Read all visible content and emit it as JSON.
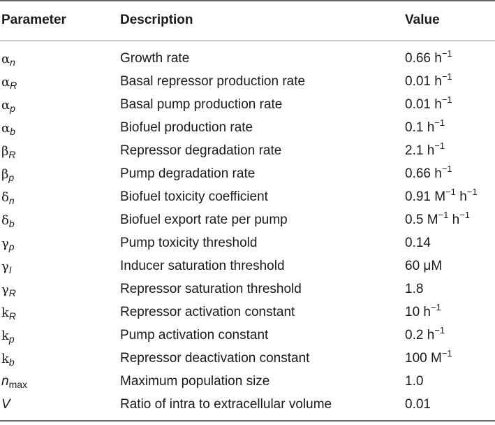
{
  "header": {
    "parameter": "Parameter",
    "description": "Description",
    "value": "Value"
  },
  "rows": [
    {
      "sym": "α",
      "sub": "n",
      "desc": "Growth rate",
      "val": "0.66 h",
      "sup": "−1",
      "val2": "",
      "sup2": ""
    },
    {
      "sym": "α",
      "sub": "R",
      "desc": "Basal repressor production rate",
      "val": "0.01 h",
      "sup": "−1",
      "val2": "",
      "sup2": ""
    },
    {
      "sym": "α",
      "sub": "p",
      "desc": "Basal pump production rate",
      "val": "0.01 h",
      "sup": "−1",
      "val2": "",
      "sup2": ""
    },
    {
      "sym": "α",
      "sub": "b",
      "desc": "Biofuel production rate",
      "val": "0.1 h",
      "sup": "−1",
      "val2": "",
      "sup2": ""
    },
    {
      "sym": "β",
      "sub": "R",
      "desc": "Repressor degradation rate",
      "val": "2.1 h",
      "sup": "−1",
      "val2": "",
      "sup2": ""
    },
    {
      "sym": "β",
      "sub": "p",
      "desc": "Pump degradation rate",
      "val": "0.66 h",
      "sup": "−1",
      "val2": "",
      "sup2": ""
    },
    {
      "sym": "δ",
      "sub": "n",
      "desc": "Biofuel toxicity coefficient",
      "val": "0.91 M",
      "sup": "−1",
      "val2": " h",
      "sup2": "−1"
    },
    {
      "sym": "δ",
      "sub": "b",
      "desc": "Biofuel export rate per pump",
      "val": "0.5 M",
      "sup": "−1",
      "val2": " h",
      "sup2": "−1"
    },
    {
      "sym": "γ",
      "sub": "p",
      "desc": "Pump toxicity threshold",
      "val": "0.14",
      "sup": "",
      "val2": "",
      "sup2": ""
    },
    {
      "sym": "γ",
      "sub": "I",
      "desc": "Inducer saturation threshold",
      "val": "60 μM",
      "sup": "",
      "val2": "",
      "sup2": ""
    },
    {
      "sym": "γ",
      "sub": "R",
      "desc": "Repressor saturation threshold",
      "val": "1.8",
      "sup": "",
      "val2": "",
      "sup2": ""
    },
    {
      "sym": "k",
      "sub": "R",
      "desc": "Repressor activation constant",
      "val": "10 h",
      "sup": "−1",
      "val2": "",
      "sup2": ""
    },
    {
      "sym": "k",
      "sub": "p",
      "desc": "Pump activation constant",
      "val": "0.2 h",
      "sup": "−1",
      "val2": "",
      "sup2": ""
    },
    {
      "sym": "k",
      "sub": "b",
      "desc": "Repressor deactivation constant",
      "val": "100 M",
      "sup": "−1",
      "val2": "",
      "sup2": ""
    },
    {
      "sym": "n",
      "sub": "max",
      "desc": "Maximum population size",
      "val": "1.0",
      "sup": "",
      "val2": "",
      "sup2": ""
    },
    {
      "sym": "V",
      "sub": "",
      "desc": "Ratio of intra to extracellular volume",
      "val": "0.01",
      "sup": "",
      "val2": "",
      "sup2": ""
    }
  ]
}
